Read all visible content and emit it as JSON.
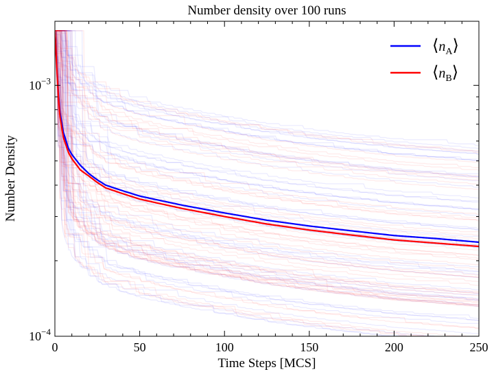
{
  "chart_data": {
    "type": "line",
    "title": "Number density over 100 runs",
    "xlabel": "Time Steps [MCS]",
    "ylabel": "Number Density",
    "xlim": [
      0,
      250
    ],
    "ylim": [
      0.0001,
      0.0018
    ],
    "yscale": "log",
    "x_ticks": [
      0,
      50,
      100,
      150,
      200,
      250
    ],
    "x_tick_labels": [
      "0",
      "50",
      "100",
      "150",
      "200",
      "250"
    ],
    "y_ticks": [
      0.0001,
      0.001
    ],
    "y_tick_labels": [
      {
        "base": "10",
        "exp": "−4"
      },
      {
        "base": "10",
        "exp": "−3"
      }
    ],
    "grid": false,
    "legend_position": "top-right",
    "runs": 100,
    "run_alpha": 0.08,
    "series": [
      {
        "name": "⟨nA⟩",
        "legend": {
          "var": "n",
          "sub": "A"
        },
        "color": "#0000ff",
        "x": [
          0,
          1,
          2,
          3,
          5,
          8,
          10,
          15,
          20,
          25,
          30,
          40,
          50,
          60,
          75,
          100,
          125,
          150,
          175,
          200,
          225,
          250
        ],
        "y": [
          0.00165,
          0.00125,
          0.00095,
          0.00078,
          0.00065,
          0.00056,
          0.00053,
          0.00048,
          0.000445,
          0.00042,
          0.0004,
          0.00038,
          0.000362,
          0.00035,
          0.000333,
          0.00031,
          0.00029,
          0.000275,
          0.000263,
          0.000252,
          0.000245,
          0.000237
        ]
      },
      {
        "name": "⟨nB⟩",
        "legend": {
          "var": "n",
          "sub": "B"
        },
        "color": "#ff0000",
        "x": [
          0,
          1,
          2,
          3,
          5,
          8,
          10,
          15,
          20,
          25,
          30,
          40,
          50,
          60,
          75,
          100,
          125,
          150,
          175,
          200,
          225,
          250
        ],
        "y": [
          0.00165,
          0.00122,
          0.00092,
          0.00075,
          0.00062,
          0.00054,
          0.00051,
          0.00046,
          0.000435,
          0.00041,
          0.00039,
          0.00037,
          0.000352,
          0.00034,
          0.000323,
          0.0003,
          0.00028,
          0.000265,
          0.000253,
          0.000242,
          0.000235,
          0.000228
        ]
      }
    ]
  }
}
